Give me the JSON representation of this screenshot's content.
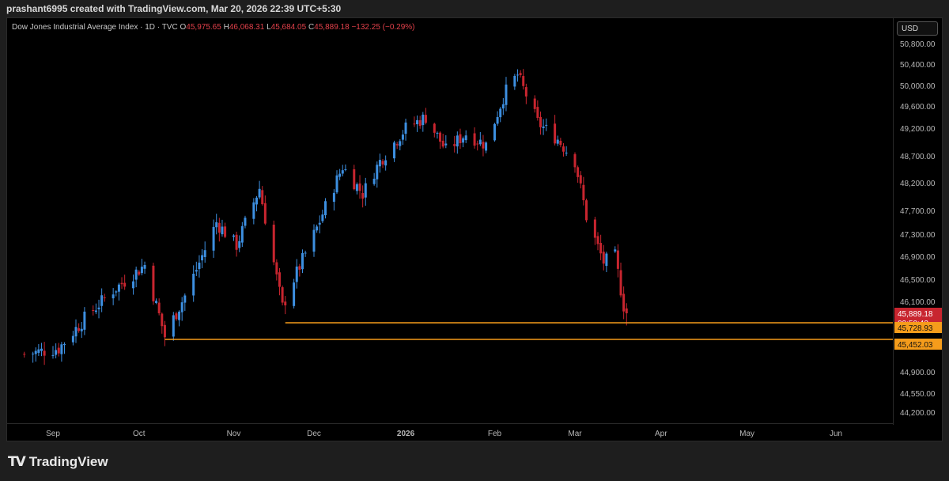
{
  "header": {
    "text": "prashant6995 created with TradingView.com, Mar 20, 2026 22:39 UTC+5:30"
  },
  "legend": {
    "title": "Dow Jones Industrial Average Index · 1D · TVC",
    "o_label": "O",
    "o_value": "45,975.65",
    "h_label": "H",
    "h_value": "46,068.31",
    "l_label": "L",
    "l_value": "45,684.05",
    "c_label": "C",
    "c_value": "45,889.18",
    "change": "−132.25 (−0.29%)"
  },
  "currency_button": "USD",
  "footer": {
    "brand": "TradingView"
  },
  "colors": {
    "up": "#3d8fe0",
    "down": "#c8252f",
    "level": "#f59c1b",
    "background": "#000000"
  },
  "chart_data": {
    "type": "candlestick",
    "price_axis_ticks": [
      "50,800.00",
      "50,400.00",
      "50,000.00",
      "49,600.00",
      "49,200.00",
      "48,700.00",
      "48,200.00",
      "47,700.00",
      "47,300.00",
      "46,900.00",
      "46,500.00",
      "46,100.00",
      "44,900.00",
      "44,550.00",
      "44,200.00"
    ],
    "time_axis_ticks": [
      "Sep",
      "Oct",
      "Nov",
      "Dec",
      "2026",
      "Feb",
      "Mar",
      "Apr",
      "May",
      "Jun"
    ],
    "ylim": [
      44000,
      51000
    ],
    "last_price": {
      "value": 45889.18,
      "label": "45,889.18",
      "countdown": "02:50:43"
    },
    "levels": [
      {
        "value": 45728.93,
        "label": "45,728.93",
        "start": "Nov 21, 2025"
      },
      {
        "value": 45452.03,
        "label": "45,452.03",
        "start": "Oct 10, 2025"
      }
    ],
    "anchors": [
      {
        "date": "Aug 22, 2025",
        "close": 45200
      },
      {
        "date": "Sep 03, 2025",
        "close": 45300
      },
      {
        "date": "Sep 12, 2025",
        "close": 45800
      },
      {
        "date": "Sep 22, 2025",
        "close": 46300
      },
      {
        "date": "Oct 03, 2025",
        "close": 46750
      },
      {
        "date": "Oct 10, 2025",
        "close": 45500
      },
      {
        "date": "Oct 17, 2025",
        "close": 46200
      },
      {
        "date": "Oct 28, 2025",
        "close": 47500
      },
      {
        "date": "Nov 04, 2025",
        "close": 47100
      },
      {
        "date": "Nov 12, 2025",
        "close": 48100
      },
      {
        "date": "Nov 20, 2025",
        "close": 46000
      },
      {
        "date": "Nov 24, 2025",
        "close": 46500
      },
      {
        "date": "Dec 02, 2025",
        "close": 47400
      },
      {
        "date": "Dec 11, 2025",
        "close": 48500
      },
      {
        "date": "Dec 18, 2025",
        "close": 48000
      },
      {
        "date": "Dec 24, 2025",
        "close": 48600
      },
      {
        "date": "Jan 02, 2026",
        "close": 49200
      },
      {
        "date": "Jan 09, 2026",
        "close": 49400
      },
      {
        "date": "Jan 16, 2026",
        "close": 48800
      },
      {
        "date": "Jan 23, 2026",
        "close": 49100
      },
      {
        "date": "Jan 30, 2026",
        "close": 48900
      },
      {
        "date": "Feb 06, 2026",
        "close": 49900
      },
      {
        "date": "Feb 10, 2026",
        "close": 50200
      },
      {
        "date": "Feb 17, 2026",
        "close": 49300
      },
      {
        "date": "Feb 24, 2026",
        "close": 49000
      },
      {
        "date": "Mar 02, 2026",
        "close": 48600
      },
      {
        "date": "Mar 06, 2026",
        "close": 47600
      },
      {
        "date": "Mar 12, 2026",
        "close": 46800
      },
      {
        "date": "Mar 16, 2026",
        "close": 46900
      },
      {
        "date": "Mar 19, 2026",
        "close": 46021
      },
      {
        "date": "Mar 20, 2026",
        "close": 45889.18
      }
    ],
    "last_candle": {
      "date": "Mar 20, 2026",
      "open": 45975.65,
      "high": 46068.31,
      "low": 45684.05,
      "close": 45889.18
    }
  }
}
